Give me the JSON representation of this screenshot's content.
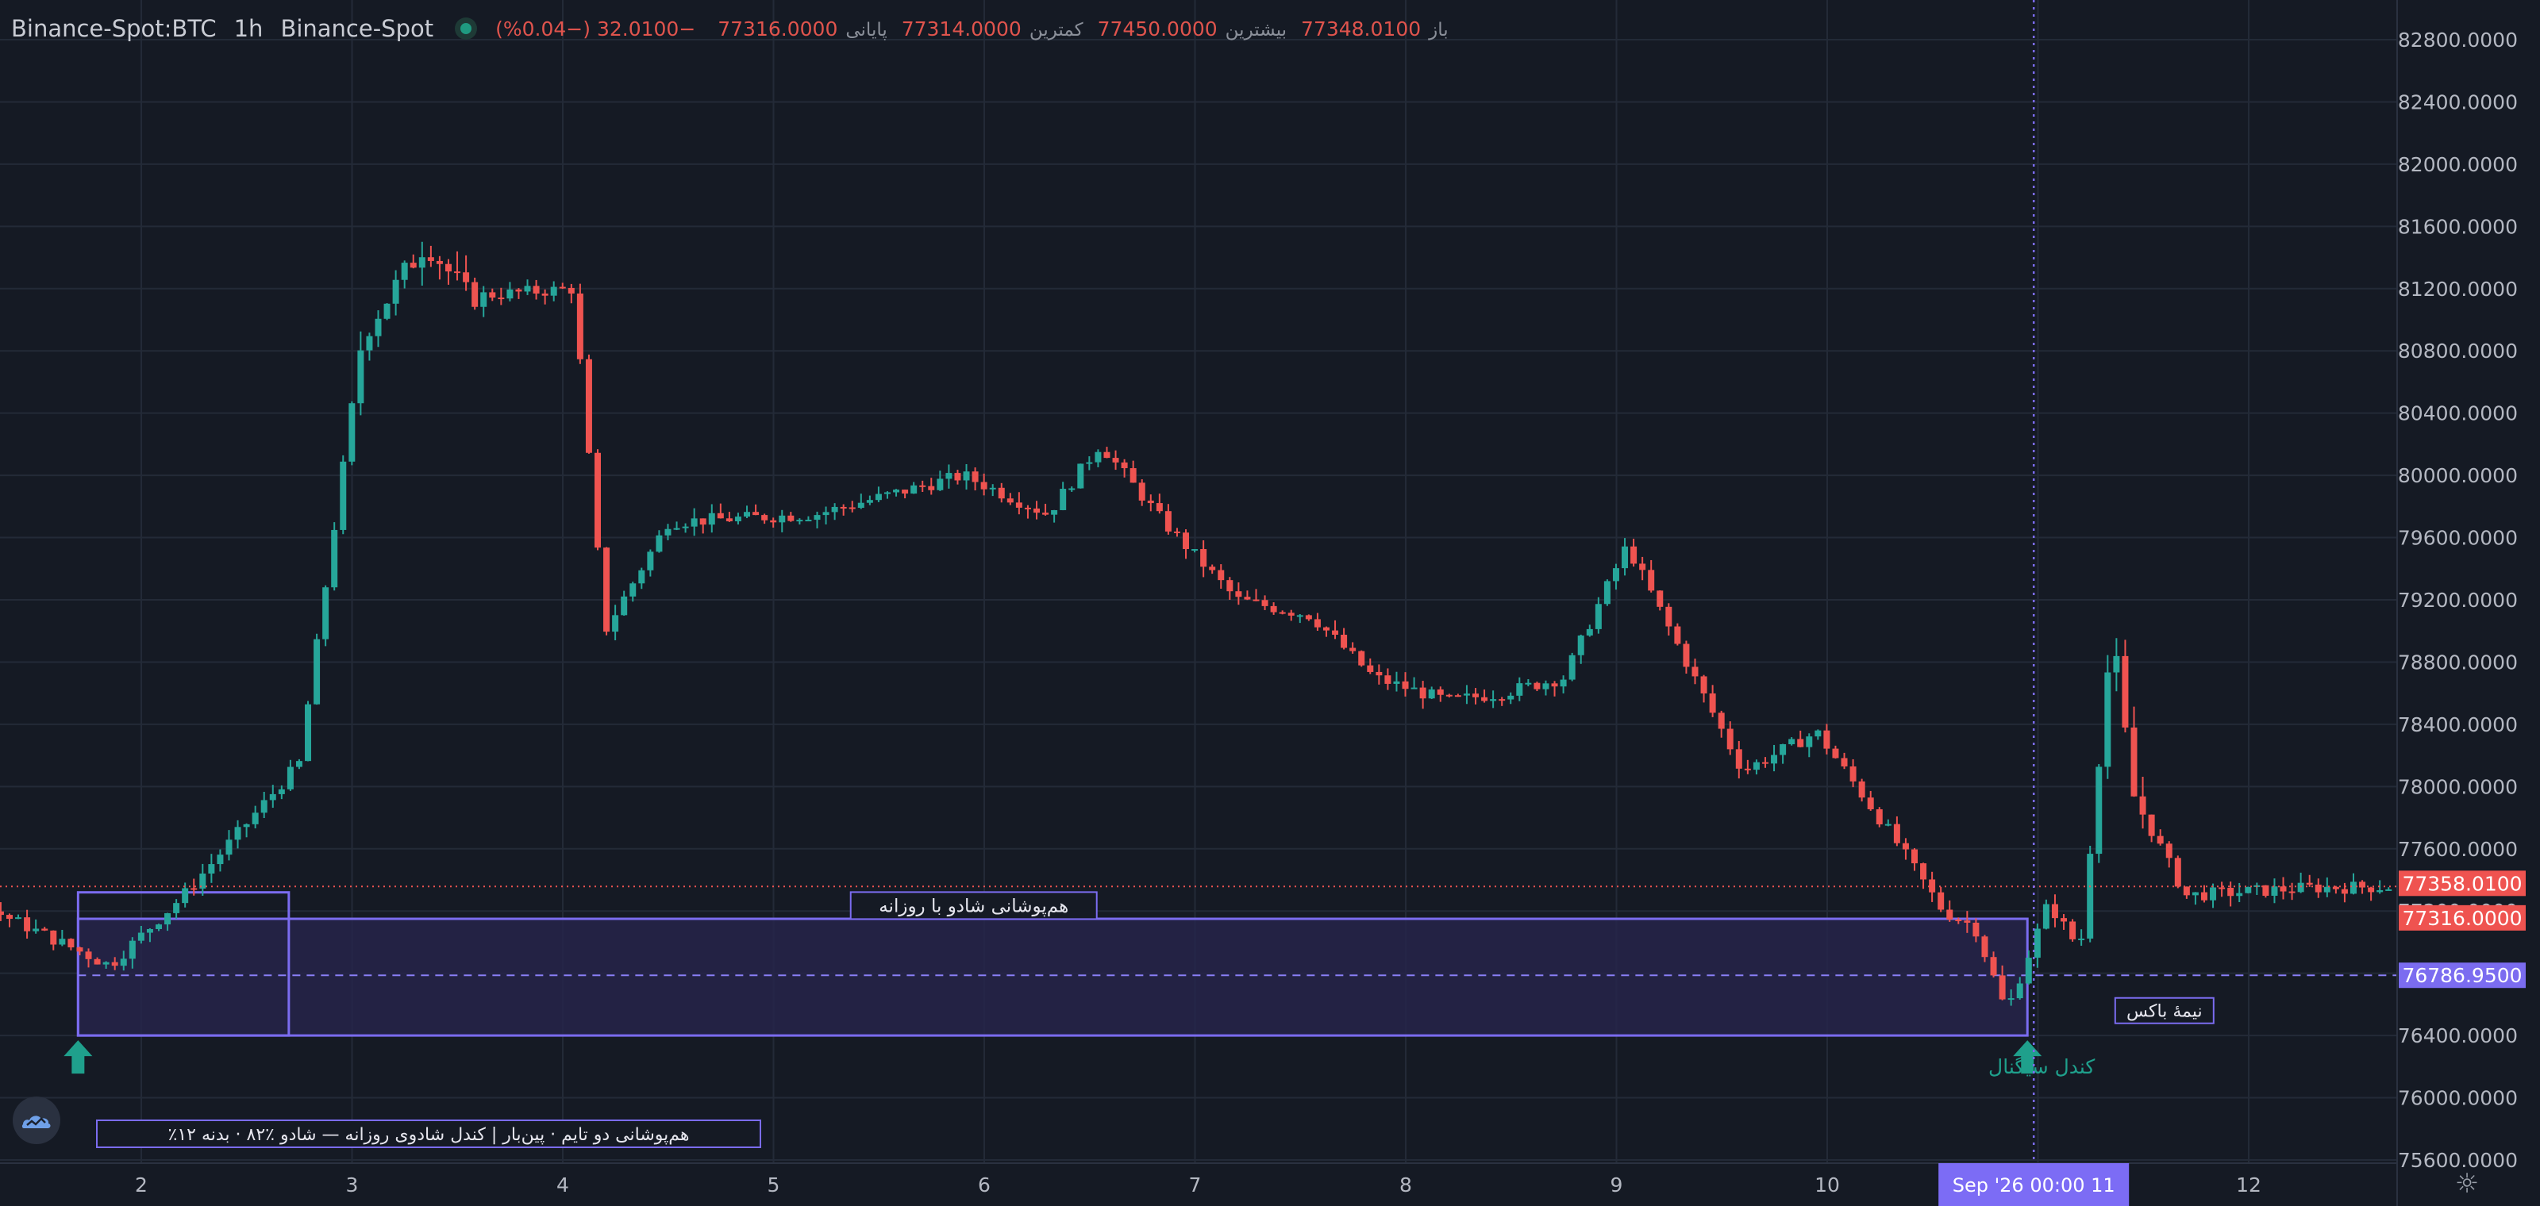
{
  "header": {
    "symbol": "Binance-Spot:BTC",
    "interval": "1h",
    "exchange": "Binance-Spot",
    "open_label": "باز",
    "open": "77348.0100",
    "high_label": "بیشترین",
    "high": "77450.0000",
    "low_label": "کمترین",
    "low": "77314.0000",
    "close_label": "پایانی",
    "close": "77316.0000",
    "change": "−32.0100 (−0.04%)"
  },
  "price_axis": {
    "ticks": [
      "82800.0000",
      "82400.0000",
      "82000.0000",
      "81600.0000",
      "81200.0000",
      "80800.0000",
      "80400.0000",
      "80000.0000",
      "79600.0000",
      "79200.0000",
      "78800.0000",
      "78400.0000",
      "78000.0000",
      "77600.0000",
      "77200.0000",
      "76800.0000",
      "76400.0000",
      "76000.0000",
      "75600.0000"
    ],
    "last_price_tag": "77358.0100",
    "close_price_tag": "77316.0000",
    "midline_tag": "76786.9500"
  },
  "time_axis": {
    "ticks": [
      "2",
      "3",
      "4",
      "5",
      "6",
      "7",
      "8",
      "9",
      "10",
      "11",
      "12"
    ],
    "crosshair_label": "Sep '26   00:00 11"
  },
  "annotations": {
    "box_title": "هم‌پوشانی شادو با روزانه",
    "midline_label": "نیمهٔ باکس",
    "signal_label": "کندل سیگنال",
    "legend_text": "٪هم‌پوشانی دو تایم · پین‌بار | کندل شادوی روزانه — شادو ٪۸۲ · بدنه ۱۲"
  },
  "colors": {
    "background": "#151a24",
    "grid": "#232a37",
    "up": "#26a69a",
    "down": "#ef5350",
    "box_border": "#7b6cf0",
    "box_fill": "#26244a",
    "crosshair": "#7c6cf5",
    "text": "#c9ccd4",
    "axis_text": "#b4b8c2"
  },
  "chart_data": {
    "type": "candlestick",
    "interval": "1h",
    "ylim": [
      75400,
      83000
    ],
    "series_anchors": [
      {
        "x": 0.0,
        "p": 77900
      },
      {
        "x": 0.8,
        "p": 77350
      },
      {
        "x": 1.3,
        "p": 77200
      },
      {
        "x": 1.85,
        "p": 76850
      },
      {
        "x": 2.2,
        "p": 77300
      },
      {
        "x": 2.75,
        "p": 78150
      },
      {
        "x": 3.05,
        "p": 80900
      },
      {
        "x": 3.35,
        "p": 81500
      },
      {
        "x": 3.55,
        "p": 81150
      },
      {
        "x": 4.05,
        "p": 81200
      },
      {
        "x": 4.2,
        "p": 79000
      },
      {
        "x": 4.5,
        "p": 79700
      },
      {
        "x": 5.2,
        "p": 79750
      },
      {
        "x": 5.9,
        "p": 80000
      },
      {
        "x": 6.3,
        "p": 79750
      },
      {
        "x": 6.55,
        "p": 80200
      },
      {
        "x": 6.85,
        "p": 79700
      },
      {
        "x": 7.2,
        "p": 79200
      },
      {
        "x": 7.55,
        "p": 79100
      },
      {
        "x": 7.85,
        "p": 78700
      },
      {
        "x": 8.2,
        "p": 78550
      },
      {
        "x": 8.45,
        "p": 78600
      },
      {
        "x": 8.75,
        "p": 78700
      },
      {
        "x": 9.05,
        "p": 79550
      },
      {
        "x": 9.35,
        "p": 78750
      },
      {
        "x": 9.6,
        "p": 78100
      },
      {
        "x": 9.95,
        "p": 78350
      },
      {
        "x": 10.3,
        "p": 77700
      },
      {
        "x": 10.55,
        "p": 77200
      },
      {
        "x": 10.7,
        "p": 77100
      },
      {
        "x": 10.85,
        "p": 76550
      },
      {
        "x": 11.05,
        "p": 77250
      },
      {
        "x": 11.2,
        "p": 76950
      },
      {
        "x": 11.35,
        "p": 79000
      },
      {
        "x": 11.45,
        "p": 77950
      },
      {
        "x": 11.7,
        "p": 77300
      },
      {
        "x": 12.3,
        "p": 77350
      },
      {
        "x": 12.75,
        "p": 77358
      }
    ],
    "box": {
      "top": 77150,
      "bottom": 76400,
      "mid": 76786.95,
      "x_start": 1.7,
      "x_end": 10.95
    },
    "prev_box": {
      "top": 77320,
      "x_start": 1.7,
      "x_end": 2.7
    },
    "signal_arrows": [
      1.7,
      10.95
    ],
    "crosshair_x": 10.98,
    "last_price": 77358.01,
    "close_price": 77316.0,
    "title": "",
    "xlabel": "",
    "ylabel": ""
  }
}
